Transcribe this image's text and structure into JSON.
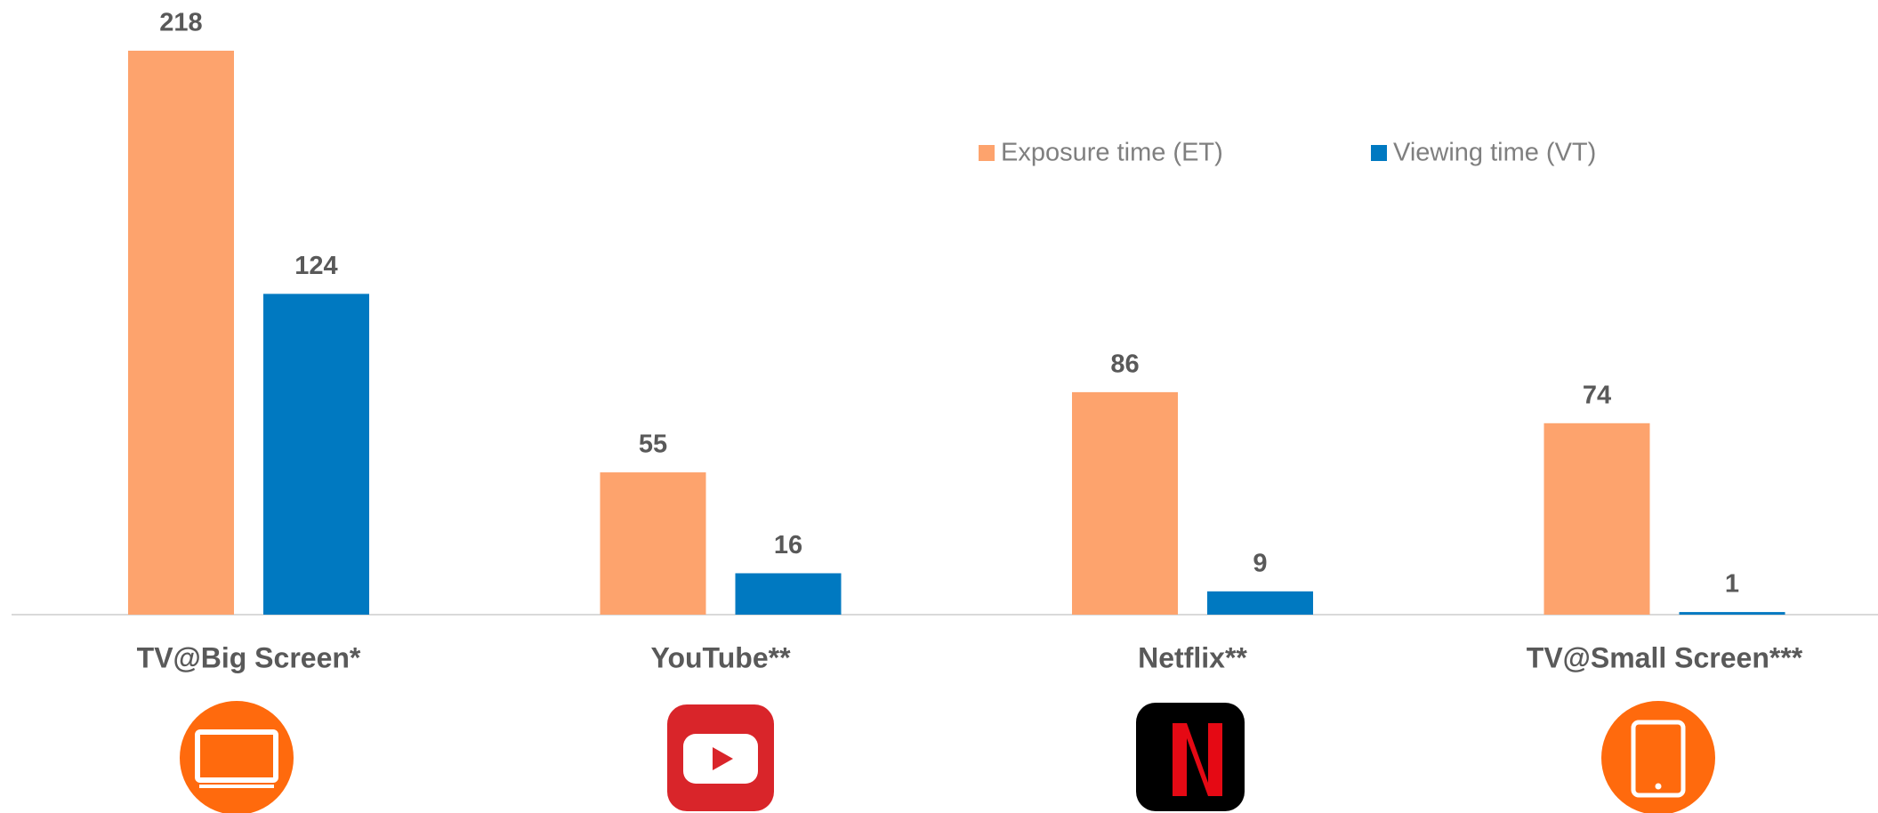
{
  "chart_data": {
    "type": "bar",
    "categories": [
      "TV@Big Screen*",
      "YouTube**",
      "Netflix**",
      "TV@Small Screen***"
    ],
    "series": [
      {
        "name": "Exposure time (ET)",
        "color": "#fda36d",
        "values": [
          218,
          55,
          86,
          74
        ]
      },
      {
        "name": "Viewing time (VT)",
        "color": "#0079c1",
        "values": [
          124,
          16,
          9,
          1
        ]
      }
    ]
  }
}
